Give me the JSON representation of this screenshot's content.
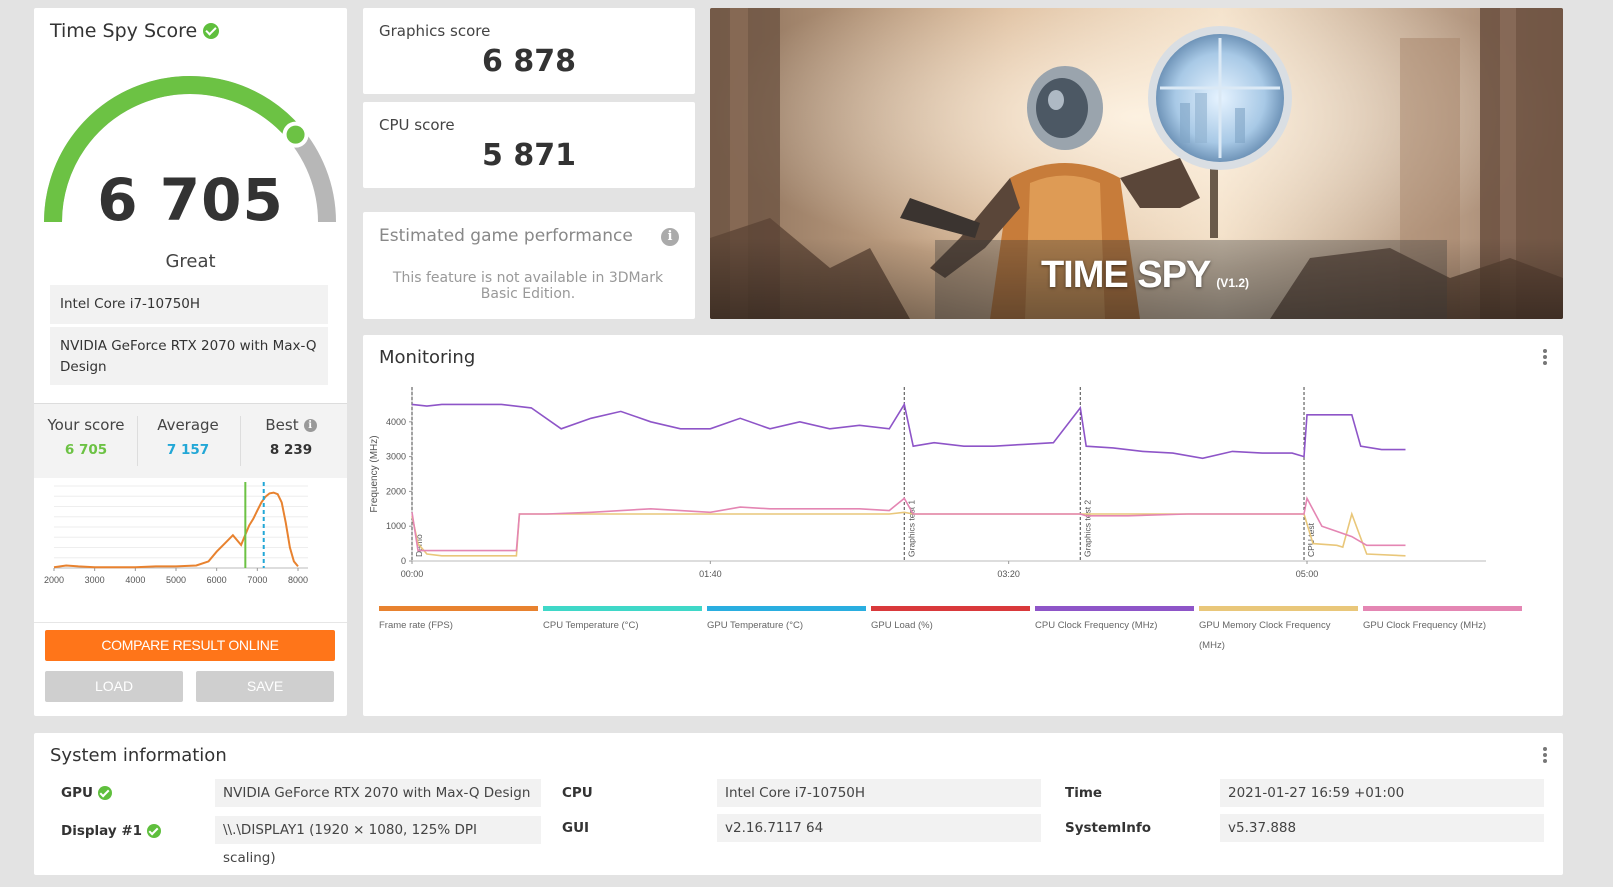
{
  "score_card": {
    "title": "Time Spy Score",
    "score": "6 705",
    "rating": "Great",
    "cpu": "Intel Core i7-10750H",
    "gpu": "NVIDIA GeForce RTX 2070 with Max-Q Design",
    "gauge_fraction": 0.78,
    "your_score_label": "Your score",
    "your_score": "6 705",
    "average_label": "Average",
    "average": "7 157",
    "best_label": "Best",
    "best": "8 239",
    "compare_button": "COMPARE RESULT ONLINE",
    "load_button": "LOAD",
    "save_button": "SAVE",
    "colors": {
      "green": "#6cc244",
      "cyan": "#22a7d6",
      "orange": "#ff7519"
    }
  },
  "chart_data": [
    {
      "type": "line",
      "title": "",
      "xlabel": "",
      "ylabel": "",
      "x_ticks": [
        "2000",
        "3000",
        "4000",
        "5000",
        "6000",
        "7000",
        "8000"
      ],
      "xlim": [
        2000,
        8000
      ],
      "series": [
        {
          "x": [
            2000,
            2300,
            2600,
            3000,
            3500,
            4000,
            4500,
            5000,
            5500,
            5800,
            6000,
            6200,
            6400,
            6500,
            6600,
            6700,
            6800,
            6900,
            7000,
            7100,
            7200,
            7300,
            7400,
            7500,
            7600,
            7700,
            7800,
            7900,
            8000
          ],
          "y": [
            1,
            3,
            2,
            1,
            1,
            1,
            2,
            2,
            3,
            8,
            20,
            30,
            40,
            34,
            28,
            40,
            52,
            60,
            70,
            80,
            87,
            91,
            92,
            90,
            80,
            55,
            25,
            8,
            2
          ]
        }
      ],
      "markers": {
        "your_score": 6705,
        "average": 7157
      }
    },
    {
      "type": "line",
      "title": "Monitoring",
      "ylabel": "Frequency (MHz)",
      "y_ticks": [
        "0",
        "1000",
        "2000",
        "3000",
        "4000"
      ],
      "ylim": [
        0,
        5000
      ],
      "x_ticks": [
        "00:00",
        "01:40",
        "03:20",
        "05:00"
      ],
      "xlim": [
        0,
        360
      ],
      "phase_markers": [
        {
          "label": "Demo",
          "x": 0
        },
        {
          "label": "Graphics test 1",
          "x": 165
        },
        {
          "label": "Graphics test 2",
          "x": 224
        },
        {
          "label": "CPU test",
          "x": 299
        }
      ],
      "series": [
        {
          "name": "CPU Clock Frequency (MHz)",
          "x": [
            0,
            5,
            10,
            20,
            30,
            40,
            50,
            60,
            70,
            80,
            90,
            100,
            110,
            120,
            130,
            140,
            150,
            160,
            165,
            168,
            175,
            185,
            195,
            205,
            215,
            224,
            226,
            235,
            245,
            255,
            265,
            275,
            285,
            295,
            299,
            300,
            305,
            315,
            318,
            325,
            333
          ],
          "y": [
            4500,
            4450,
            4500,
            4500,
            4500,
            4400,
            3800,
            4100,
            4300,
            4000,
            3800,
            3800,
            4100,
            3800,
            4000,
            3800,
            3900,
            3800,
            4500,
            3300,
            3400,
            3300,
            3300,
            3350,
            3400,
            4400,
            3300,
            3250,
            3150,
            3100,
            2950,
            3150,
            3100,
            3100,
            3000,
            4200,
            4200,
            4200,
            3300,
            3200,
            3200
          ]
        },
        {
          "name": "GPU Memory Clock Frequency (MHz)",
          "x": [
            0,
            2,
            5,
            10,
            20,
            35,
            36,
            45,
            60,
            80,
            100,
            120,
            140,
            160,
            165,
            168,
            180,
            200,
            224,
            226,
            240,
            260,
            280,
            299,
            302,
            310,
            312,
            315,
            320,
            333
          ],
          "y": [
            1300,
            500,
            200,
            150,
            150,
            150,
            1350,
            1350,
            1350,
            1350,
            1350,
            1350,
            1350,
            1350,
            1400,
            1350,
            1350,
            1350,
            1350,
            1350,
            1350,
            1350,
            1350,
            1350,
            500,
            450,
            400,
            1350,
            200,
            150
          ]
        },
        {
          "name": "GPU Clock Frequency (MHz)",
          "x": [
            0,
            2,
            5,
            10,
            20,
            35,
            36,
            45,
            60,
            80,
            100,
            110,
            120,
            135,
            150,
            160,
            165,
            168,
            180,
            200,
            224,
            226,
            240,
            260,
            280,
            299,
            300,
            305,
            310,
            315,
            320,
            333
          ],
          "y": [
            1400,
            300,
            300,
            300,
            300,
            300,
            1350,
            1350,
            1400,
            1500,
            1400,
            1550,
            1500,
            1500,
            1500,
            1450,
            1800,
            1350,
            1350,
            1350,
            1350,
            1300,
            1300,
            1350,
            1350,
            1350,
            1800,
            1000,
            850,
            700,
            450,
            450
          ]
        }
      ],
      "legend": [
        {
          "name": "Frame rate (FPS)",
          "color": "#e8822f"
        },
        {
          "name": "CPU Temperature (°C)",
          "color": "#3fd8c8"
        },
        {
          "name": "GPU Temperature (°C)",
          "color": "#2aaee0"
        },
        {
          "name": "GPU Load (%)",
          "color": "#d9393b"
        },
        {
          "name": "CPU Clock Frequency (MHz)",
          "color": "#8e55c8"
        },
        {
          "name": "GPU Memory Clock Frequency (MHz)",
          "color": "#e9c77a"
        },
        {
          "name": "GPU Clock Frequency (MHz)",
          "color": "#e486b3"
        }
      ]
    }
  ],
  "graphics": {
    "label": "Graphics score",
    "value": "6 878"
  },
  "cpu_score": {
    "label": "CPU score",
    "value": "5 871"
  },
  "estimated": {
    "label": "Estimated game performance",
    "message": "This feature is not available in 3DMark Basic Edition."
  },
  "banner": {
    "title": "TIME SPY",
    "version": "(V1.2)"
  },
  "monitoring": {
    "title": "Monitoring",
    "ylabel": "Frequency (MHz)"
  },
  "system": {
    "title": "System information",
    "gpu_label": "GPU",
    "gpu_value": "NVIDIA GeForce RTX 2070 with Max-Q Design",
    "display_label": "Display #1",
    "display_value": "\\\\.\\DISPLAY1 (1920 × 1080, 125% DPI scaling)",
    "cpu_label": "CPU",
    "cpu_value": "Intel Core i7-10750H",
    "gui_label": "GUI",
    "gui_value": "v2.16.7117 64",
    "time_label": "Time",
    "time_value": "2021-01-27 16:59 +01:00",
    "sysinfo_label": "SystemInfo",
    "sysinfo_value": "v5.37.888"
  }
}
